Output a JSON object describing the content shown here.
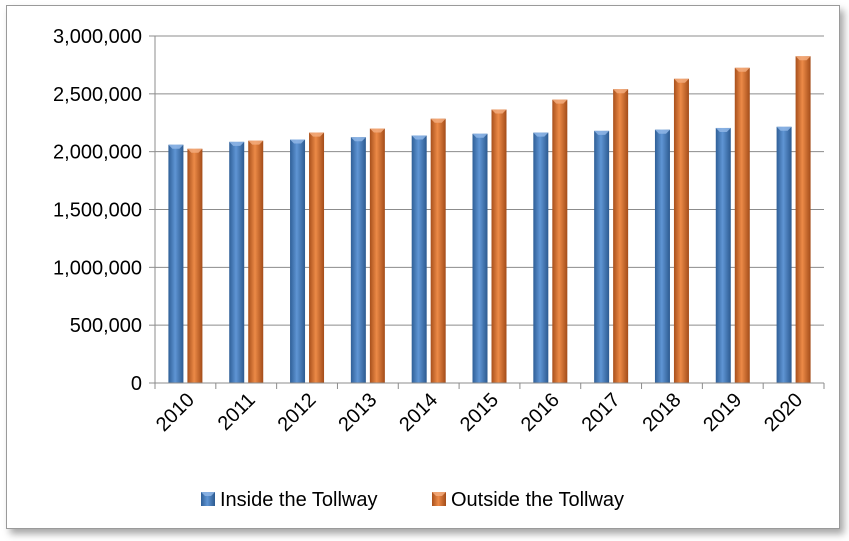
{
  "chart_data": {
    "type": "bar",
    "categories": [
      "2010",
      "2011",
      "2012",
      "2013",
      "2014",
      "2015",
      "2016",
      "2017",
      "2018",
      "2019",
      "2020"
    ],
    "series": [
      {
        "name": "Inside the Tollway",
        "color": "#4F81BD",
        "values": [
          2060000,
          2085000,
          2105000,
          2125000,
          2140000,
          2155000,
          2165000,
          2180000,
          2190000,
          2205000,
          2215000
        ]
      },
      {
        "name": "Outside the Tollway",
        "color": "#E07B39",
        "values": [
          2025000,
          2095000,
          2165000,
          2200000,
          2285000,
          2365000,
          2450000,
          2540000,
          2630000,
          2725000,
          2825000
        ]
      }
    ],
    "ylim": [
      0,
      3000000
    ],
    "yticks": [
      "0",
      "500,000",
      "1,000,000",
      "1,500,000",
      "2,000,000",
      "2,500,000",
      "3,000,000"
    ],
    "ytick_values": [
      0,
      500000,
      1000000,
      1500000,
      2000000,
      2500000,
      3000000
    ],
    "grid": true,
    "legend_position": "bottom",
    "title": "",
    "xlabel": "",
    "ylabel": ""
  }
}
